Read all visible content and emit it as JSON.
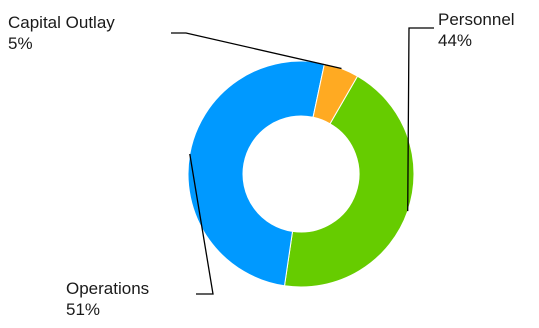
{
  "chart_data": {
    "type": "pie",
    "donut": true,
    "slices": [
      {
        "label": "Personnel",
        "value": 44,
        "value_label": "44%",
        "color": "#66cc00"
      },
      {
        "label": "Operations",
        "value": 51,
        "value_label": "51%",
        "color": "#0099ff"
      },
      {
        "label": "Capital Outlay",
        "value": 5,
        "value_label": "5%",
        "color": "#ffaa22"
      }
    ],
    "title": "",
    "legend": "none"
  }
}
